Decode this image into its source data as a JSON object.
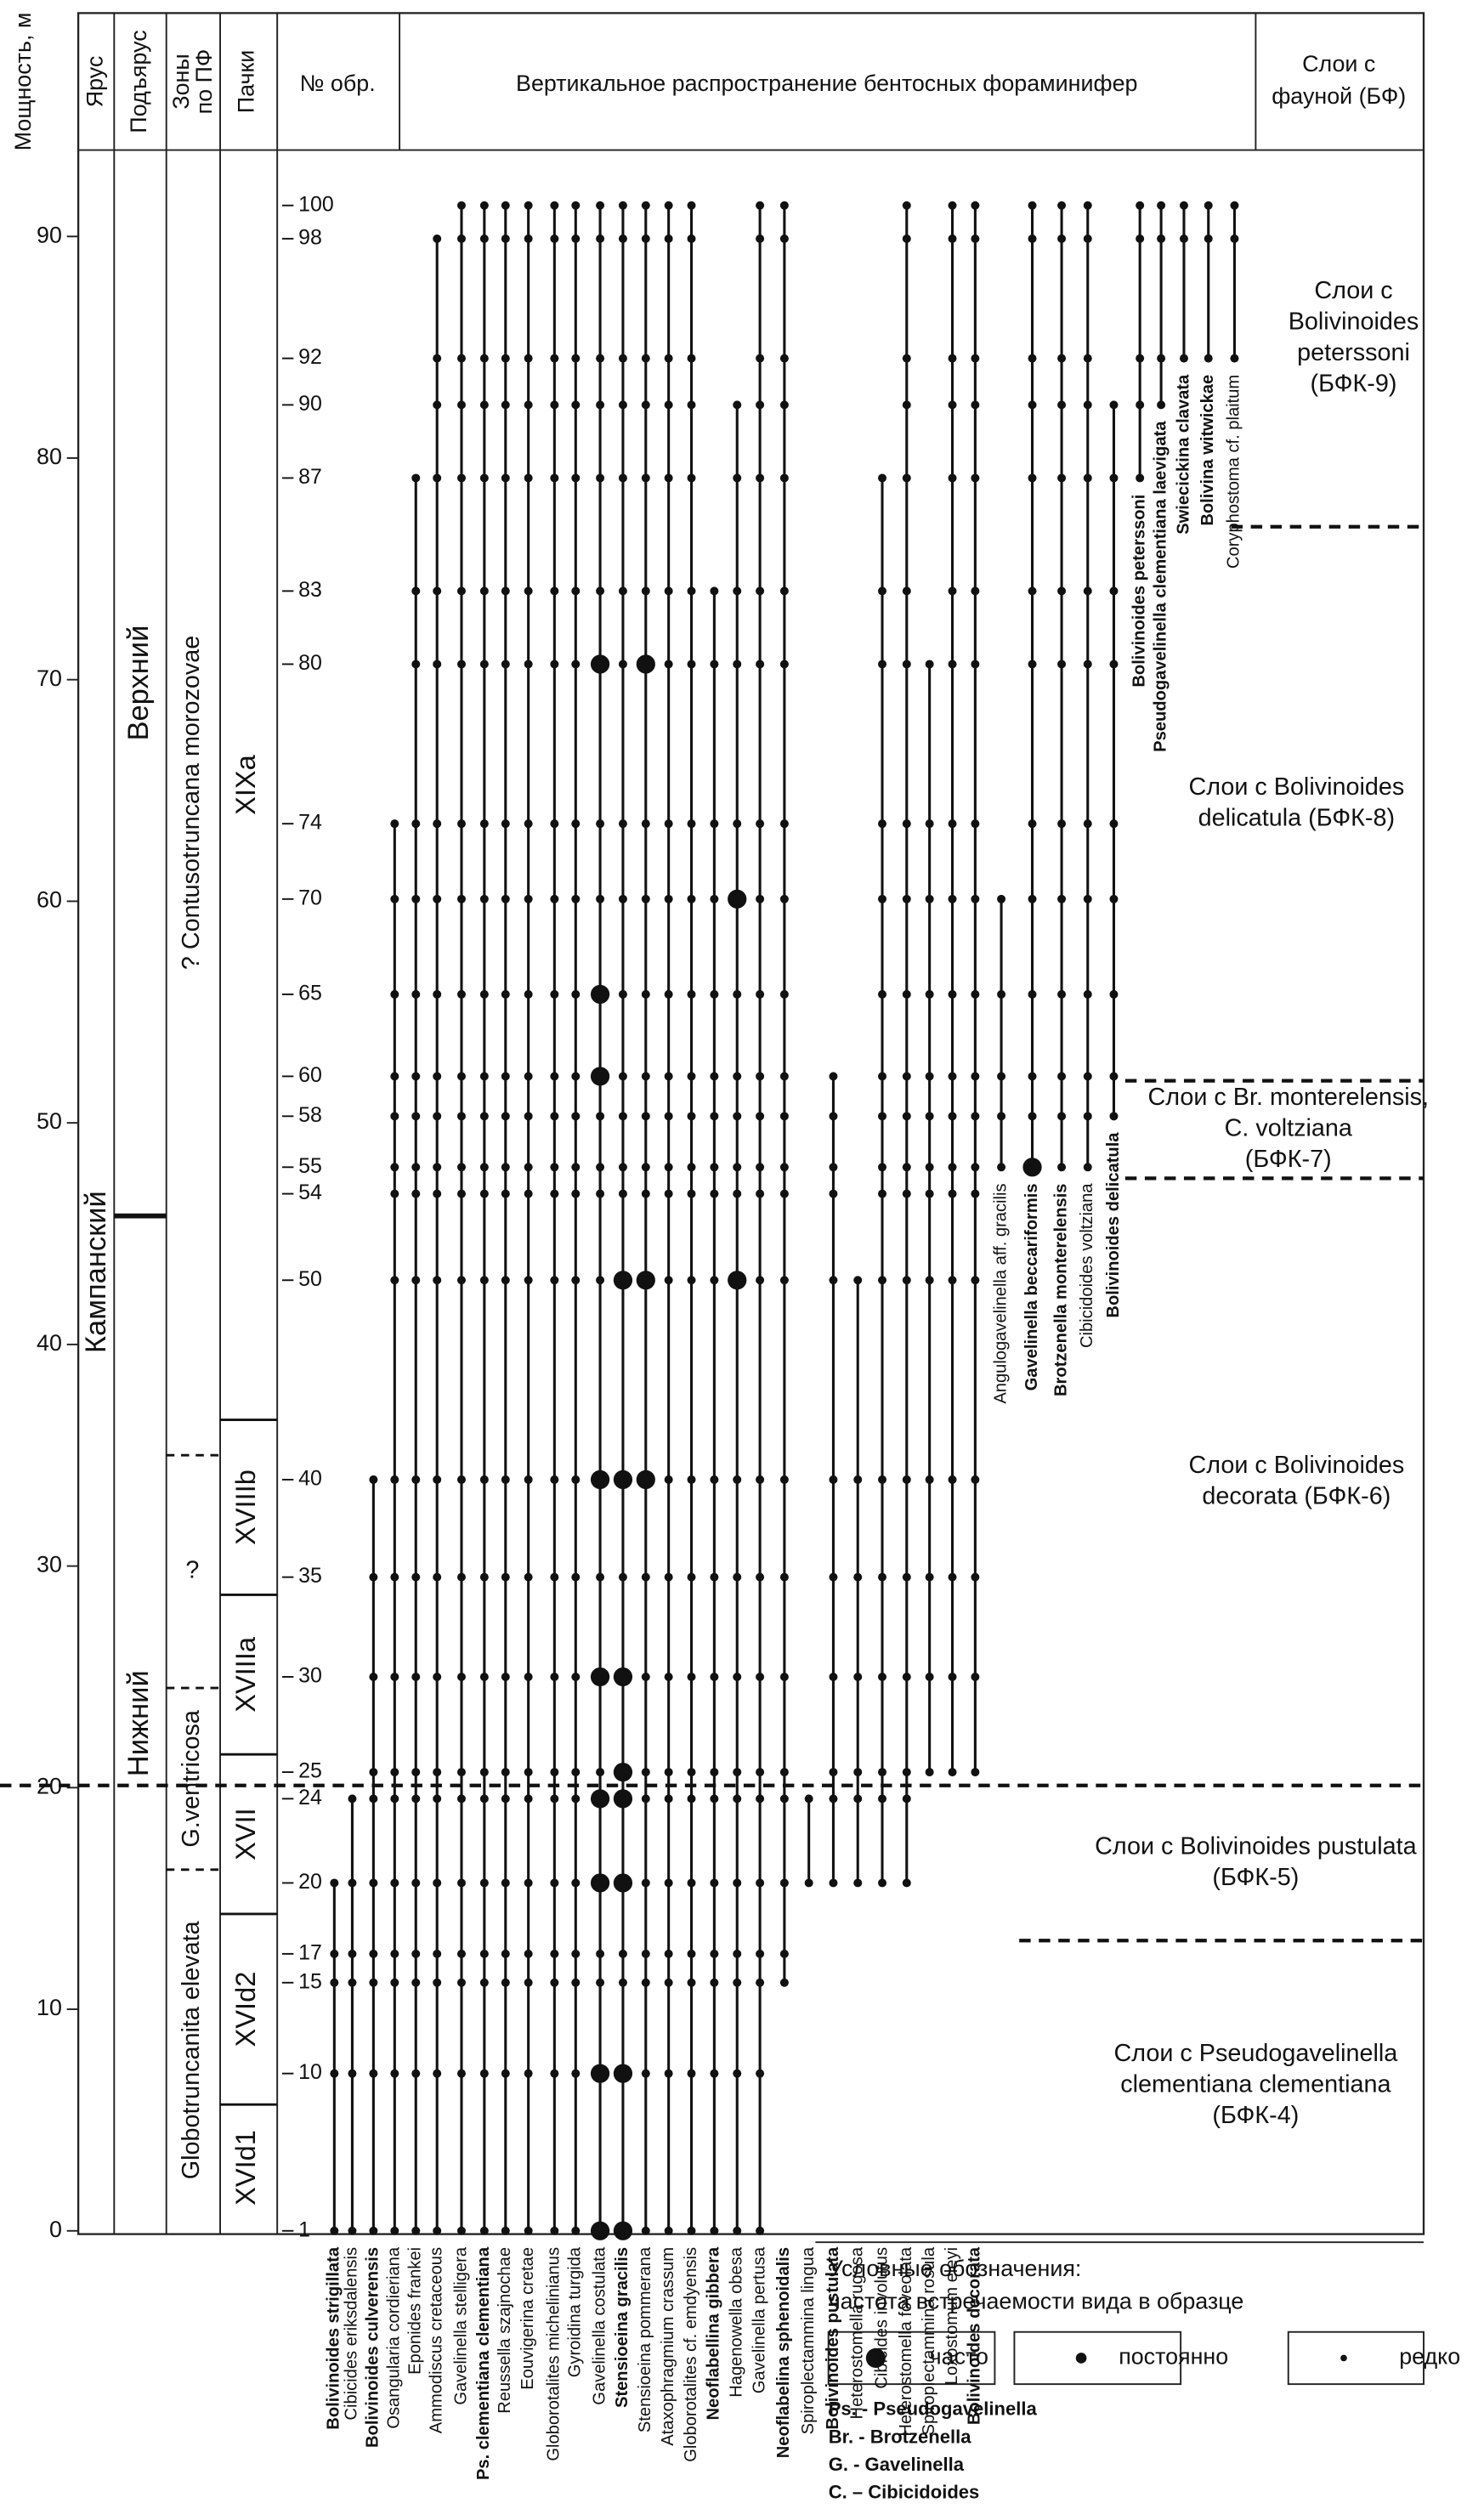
{
  "chart_data": {
    "type": "range",
    "axis_label": "Мощность, м",
    "headers": {
      "stage": "Ярус",
      "substage": "Подъярус",
      "zones": [
        "Зоны",
        "по ПФ"
      ],
      "members": "Пачки",
      "samples": "№ обр.",
      "main": "Вертикальное распространение бентосных фораминифер",
      "layers": [
        "Слои с",
        "фауной (БФ)"
      ]
    },
    "ylim": [
      0,
      93.9
    ],
    "yticks": [
      0,
      10,
      20,
      30,
      40,
      50,
      60,
      70,
      80,
      90
    ],
    "stage": "Кампанский",
    "substages": [
      {
        "name": "Нижний",
        "from": 0
      },
      {
        "name": "Верхний",
        "from": 45.8
      }
    ],
    "zones": [
      {
        "name": "Globotruncanita elevata",
        "from": 0
      },
      {
        "name": "G.ventricosa",
        "from": 16.3
      },
      {
        "name": "?",
        "from": 24.5
      },
      {
        "name": "? Contusotruncana morozovae",
        "from": 35.0
      }
    ],
    "members": [
      {
        "name": "XVId1",
        "from": 0
      },
      {
        "name": "XVId2",
        "from": 5.7
      },
      {
        "name": "XVII",
        "from": 14.3
      },
      {
        "name": "XVIIIa",
        "from": 21.5
      },
      {
        "name": "XVIIIb",
        "from": 28.7
      },
      {
        "name": "XIXa",
        "from": 36.6
      }
    ],
    "samples": [
      {
        "label": "1",
        "depth": 0
      },
      {
        "label": "10",
        "depth": 7.1
      },
      {
        "label": "15",
        "depth": 11.2
      },
      {
        "label": "17",
        "depth": 12.5
      },
      {
        "label": "20",
        "depth": 15.7
      },
      {
        "label": "24",
        "depth": 19.5
      },
      {
        "label": "25",
        "depth": 20.7
      },
      {
        "label": "30",
        "depth": 25.0
      },
      {
        "label": "35",
        "depth": 29.5
      },
      {
        "label": "40",
        "depth": 33.9
      },
      {
        "label": "50",
        "depth": 42.9
      },
      {
        "label": "54",
        "depth": 46.8
      },
      {
        "label": "55",
        "depth": 48.0
      },
      {
        "label": "58",
        "depth": 50.3
      },
      {
        "label": "60",
        "depth": 52.1
      },
      {
        "label": "65",
        "depth": 55.8
      },
      {
        "label": "70",
        "depth": 60.1
      },
      {
        "label": "74",
        "depth": 63.5
      },
      {
        "label": "80",
        "depth": 70.7
      },
      {
        "label": "83",
        "depth": 74.0
      },
      {
        "label": "87",
        "depth": 79.1
      },
      {
        "label": "90",
        "depth": 82.4
      },
      {
        "label": "92",
        "depth": 84.5
      },
      {
        "label": "98",
        "depth": 89.9
      },
      {
        "label": "100",
        "depth": 91.4
      }
    ],
    "species": [
      {
        "name": "Bolivinoides strigillata",
        "bold": true,
        "range": [
          0,
          15.7
        ],
        "frequent": []
      },
      {
        "name": "Cibicides eriksdalensis",
        "bold": false,
        "range": [
          0,
          19.5
        ],
        "frequent": []
      },
      {
        "name": "Bolivinoides culverensis",
        "bold": true,
        "range": [
          0,
          33.9
        ],
        "frequent": []
      },
      {
        "name": "Osangularia cordieriana",
        "bold": false,
        "range": [
          0,
          63.5
        ],
        "frequent": []
      },
      {
        "name": "Eponides frankei",
        "bold": false,
        "range": [
          0,
          79.1
        ],
        "frequent": []
      },
      {
        "name": "Ammodiscus cretaceous",
        "bold": false,
        "range": [
          0,
          89.9
        ],
        "frequent": []
      },
      {
        "name": "Gavelinella stelligera",
        "bold": false,
        "range": [
          0,
          91.4
        ],
        "frequent": []
      },
      {
        "name": "Ps. clementiana clementiana",
        "bold": true,
        "range": [
          0,
          91.4
        ],
        "frequent": []
      },
      {
        "name": "Reussella szajnochae",
        "bold": false,
        "range": [
          0,
          91.4
        ],
        "frequent": []
      },
      {
        "name": "Eouvigerina cretae",
        "bold": false,
        "range": [
          0,
          91.4
        ],
        "frequent": []
      },
      {
        "name": "Globorotalites michelinianus",
        "bold": false,
        "range": [
          0,
          91.4
        ],
        "frequent": []
      },
      {
        "name": "Gyroidina turgida",
        "bold": false,
        "range": [
          0,
          91.4
        ],
        "frequent": []
      },
      {
        "name": "Gavelinella costulata",
        "bold": false,
        "range": [
          0,
          91.4
        ],
        "frequent": [
          0,
          7.1,
          15.7,
          19.5,
          25.0,
          33.9,
          52.1,
          55.8,
          70.7
        ]
      },
      {
        "name": "Stensioeina gracilis",
        "bold": true,
        "range": [
          0,
          91.4
        ],
        "frequent": [
          0,
          7.1,
          15.7,
          19.5,
          20.7,
          25.0,
          33.9,
          42.9
        ]
      },
      {
        "name": "Stensioeina pommerana",
        "bold": false,
        "range": [
          0,
          91.4
        ],
        "frequent": [
          33.9,
          42.9,
          70.7
        ]
      },
      {
        "name": "Ataxophragmium crassum",
        "bold": false,
        "range": [
          0,
          91.4
        ],
        "frequent": []
      },
      {
        "name": "Globorotalites cf. emdyensis",
        "bold": false,
        "range": [
          0,
          91.4
        ],
        "frequent": []
      },
      {
        "name": "Neoflabellina gibbera",
        "bold": true,
        "range": [
          0,
          74.0
        ],
        "frequent": []
      },
      {
        "name": "Hagenowella obesa",
        "bold": false,
        "range": [
          0,
          82.4
        ],
        "frequent": [
          42.9,
          60.1
        ]
      },
      {
        "name": "Gavelinella pertusa",
        "bold": false,
        "range": [
          0,
          91.4
        ],
        "frequent": []
      },
      {
        "name": "Neoflabelina sphenoidalis",
        "bold": true,
        "range": [
          11.2,
          91.4
        ],
        "frequent": []
      },
      {
        "name": "Spiroplectammina lingua",
        "bold": false,
        "range": [
          15.7,
          19.5
        ],
        "frequent": []
      },
      {
        "name": "Bolivinoides pustulata",
        "bold": true,
        "range": [
          15.7,
          52.1
        ],
        "frequent": []
      },
      {
        "name": "Heterostomella rugosa",
        "bold": false,
        "range": [
          15.7,
          42.9
        ],
        "frequent": []
      },
      {
        "name": "Cibicides involutus",
        "bold": false,
        "range": [
          15.7,
          79.1
        ],
        "frequent": []
      },
      {
        "name": "Heterostomella foveolata",
        "bold": false,
        "range": [
          15.7,
          91.4
        ],
        "frequent": []
      },
      {
        "name": "Spiroplectammina rosula",
        "bold": false,
        "range": [
          20.7,
          70.7
        ],
        "frequent": []
      },
      {
        "name": "Loxostomum eleyi",
        "bold": false,
        "range": [
          20.7,
          91.4
        ],
        "frequent": []
      },
      {
        "name": "Bolivinoides decorata",
        "bold": true,
        "range": [
          20.7,
          91.4
        ],
        "frequent": []
      },
      {
        "name": "Angulogavelinella aff. gracilis",
        "bold": false,
        "range": [
          48.0,
          60.1
        ],
        "frequent": []
      },
      {
        "name": "Gavelinella beccariformis",
        "bold": true,
        "range": [
          48.0,
          91.4
        ],
        "frequent": [
          48.0
        ]
      },
      {
        "name": "Brotzenella monterelensis",
        "bold": true,
        "range": [
          48.0,
          91.4
        ],
        "frequent": []
      },
      {
        "name": "Cibicidoides voltziana",
        "bold": false,
        "range": [
          48.0,
          91.4
        ],
        "frequent": []
      },
      {
        "name": "Bolivinoides delicatula",
        "bold": true,
        "range": [
          50.3,
          82.4
        ],
        "frequent": []
      },
      {
        "name": "Bolivinoides peterssoni",
        "bold": true,
        "range": [
          79.1,
          91.4
        ],
        "frequent": []
      },
      {
        "name": "Pseudogavelinella clementiana laevigata",
        "bold": true,
        "range": [
          82.4,
          91.4
        ],
        "frequent": []
      },
      {
        "name": "Swiecickina clavata",
        "bold": true,
        "range": [
          84.5,
          91.4
        ],
        "frequent": []
      },
      {
        "name": "Bolivina witwickae",
        "bold": true,
        "range": [
          84.5,
          91.4
        ],
        "frequent": []
      },
      {
        "name": "Coryphostoma cf. plaitum",
        "bold": false,
        "range": [
          84.5,
          91.4
        ],
        "frequent": []
      }
    ],
    "layers": [
      {
        "lines": [
          "Слои с Pseudogavelinella",
          "clementiana clementiana",
          "(БФК-4)"
        ],
        "from": 0
      },
      {
        "lines": [
          "Слои с Bolivinoides pustulata",
          "(БФК-5)"
        ],
        "from": 13.1
      },
      {
        "lines": [
          "Слои с Bolivinoides",
          "decorata (БФК-6)"
        ],
        "from": 20.1
      },
      {
        "lines": [
          "Слои с Br. monterelensis,",
          "C. voltziana",
          "(БФК-7)"
        ],
        "from": 47.5
      },
      {
        "lines": [
          "Слои с Bolivinoides",
          "delicatula (БФК-8)"
        ],
        "from": 51.9
      },
      {
        "lines": [
          "Слои с",
          "Bolivinoides",
          "peterssoni",
          "(БФК-9)"
        ],
        "from": 76.9
      }
    ],
    "legend": {
      "title": "Условные обозначения:",
      "subtitle": "частота встречаемости вида в образце",
      "items": [
        "часто",
        "постоянно",
        "редко"
      ]
    },
    "abbreviations": [
      "Ps. - Pseudogavelinella",
      "Br. - Brotzenella",
      "G. - Gavelinella",
      "C. – Cibicidoides"
    ]
  }
}
